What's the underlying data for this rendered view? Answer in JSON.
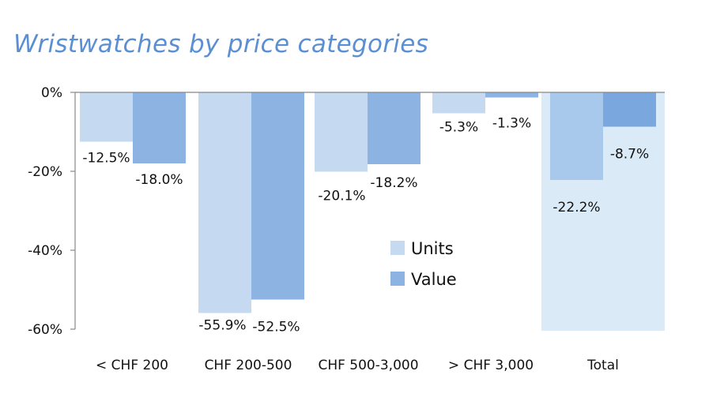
{
  "title": "Wristwatches by price categories",
  "chart_data": {
    "type": "bar",
    "title": "Wristwatches by price categories",
    "categories": [
      "< CHF 200",
      "CHF 200-500",
      "CHF 500-3,000",
      "> CHF 3,000",
      "Total"
    ],
    "series": [
      {
        "name": "Units",
        "values": [
          -12.5,
          -55.9,
          -20.1,
          -5.3,
          -22.2
        ],
        "labels": [
          "-12.5%",
          "-55.9%",
          "-20.1%",
          "-5.3%",
          "-22.2%"
        ],
        "color": "#c5d9f1"
      },
      {
        "name": "Value",
        "values": [
          -18.0,
          -52.5,
          -18.2,
          -1.3,
          -8.7
        ],
        "labels": [
          "-18.0%",
          "-52.5%",
          "-18.2%",
          "-1.3%",
          "-8.7%"
        ],
        "color": "#8db3e2"
      }
    ],
    "total_highlight": {
      "background": "#daeaf6",
      "units_color": "#a9c9ec",
      "value_color": "#7aa7de"
    },
    "ylim": [
      -60,
      0
    ],
    "yticks": [
      0,
      -20,
      -40,
      -60
    ],
    "ytick_labels": [
      "0%",
      "-20%",
      "-40%",
      "-60%"
    ],
    "legend": [
      "Units",
      "Value"
    ],
    "legend_position": "center-right",
    "xlabel": "",
    "ylabel": "",
    "grid": false
  }
}
